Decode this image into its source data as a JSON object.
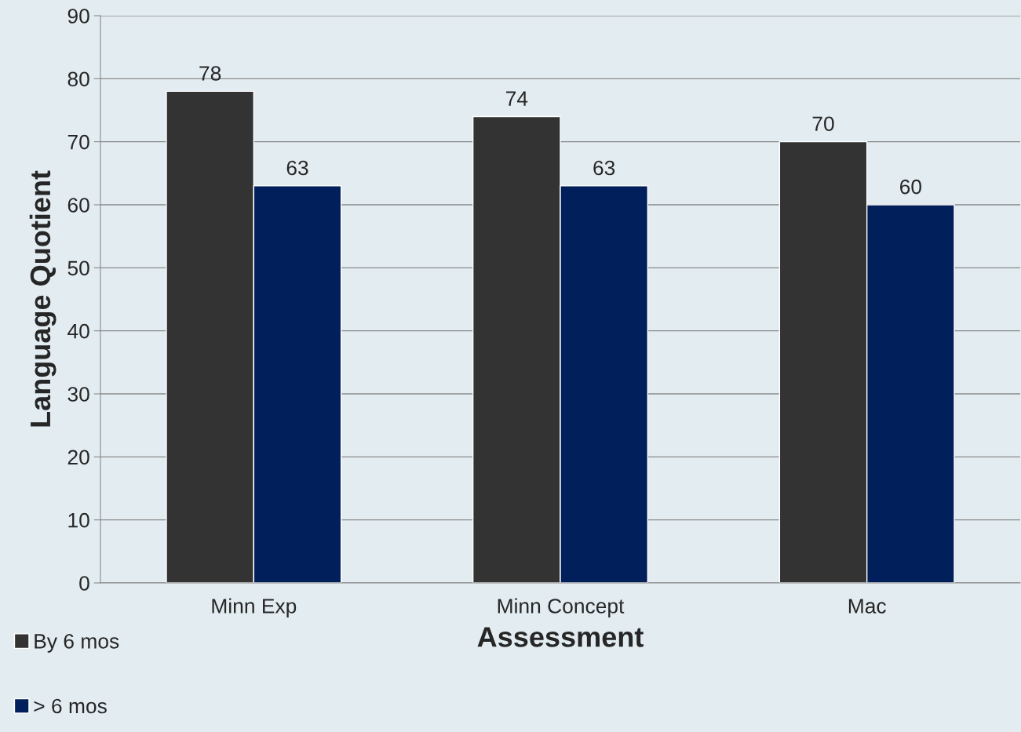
{
  "chart_data": {
    "type": "bar",
    "categories": [
      "Minn Exp",
      "Minn Concept",
      "Mac"
    ],
    "series": [
      {
        "name": "By 6 mos",
        "color": "#333333",
        "values": [
          78,
          74,
          70
        ]
      },
      {
        "name": "> 6 mos",
        "color": "#001f5b",
        "values": [
          63,
          63,
          60
        ]
      }
    ],
    "xlabel": "Assessment",
    "ylabel": "Language Quotient",
    "ylim": [
      0,
      90
    ],
    "yticks": [
      0,
      10,
      20,
      30,
      40,
      50,
      60,
      70,
      80,
      90
    ],
    "grid": "y",
    "legend": "bottom left",
    "data_labels": true
  }
}
